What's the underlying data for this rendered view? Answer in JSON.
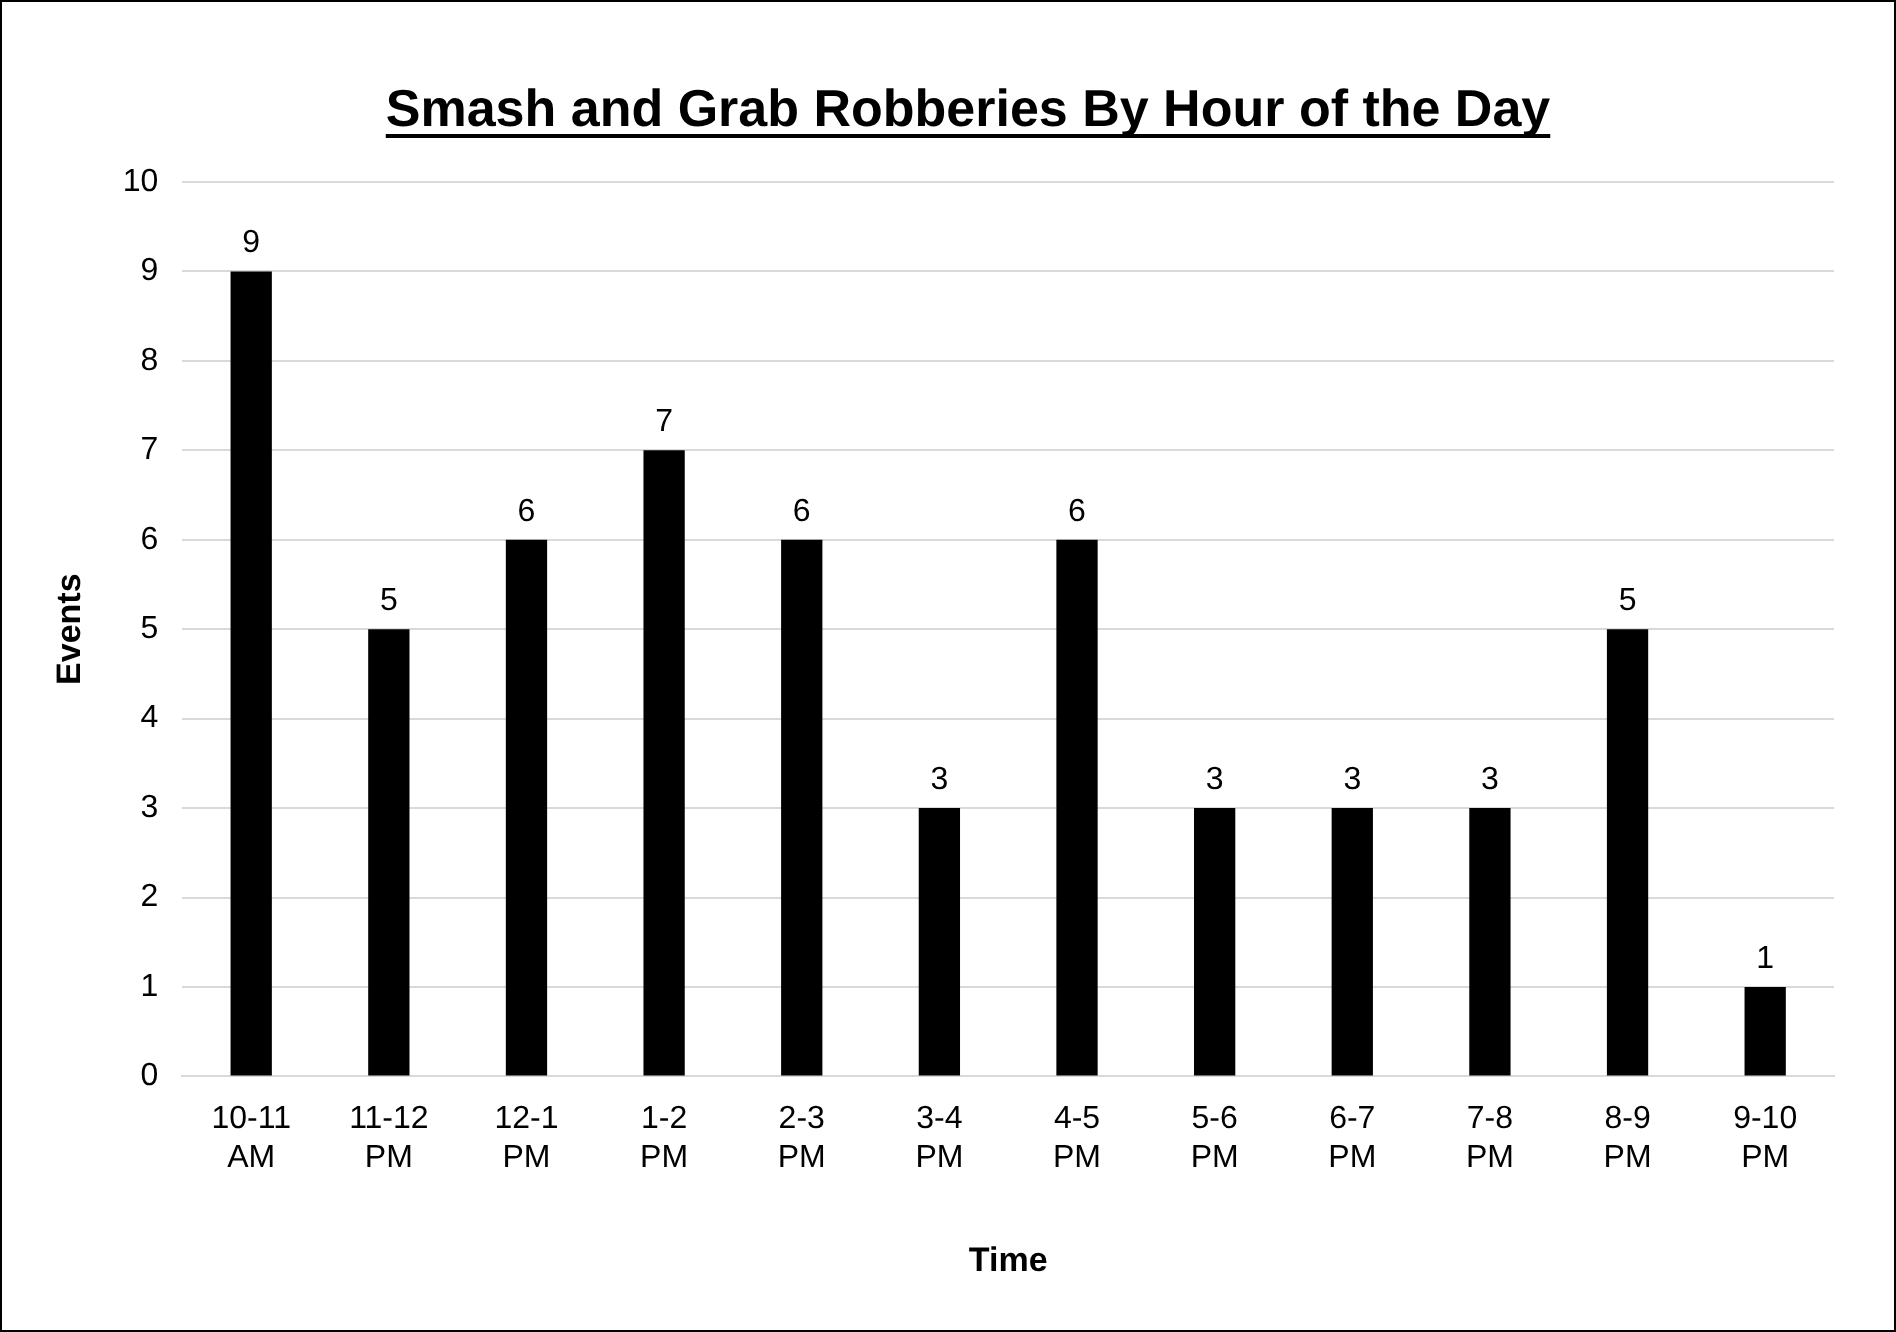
{
  "chart_data": {
    "type": "bar",
    "title": "Smash and Grab Robberies By Hour of the Day",
    "xlabel": "Time",
    "ylabel": "Events",
    "categories": [
      "10-11 AM",
      "11-12 PM",
      "12-1 PM",
      "1-2 PM",
      "2-3 PM",
      "3-4 PM",
      "4-5 PM",
      "5-6 PM",
      "6-7 PM",
      "7-8 PM",
      "8-9 PM",
      "9-10 PM"
    ],
    "values": [
      9,
      5,
      6,
      7,
      6,
      3,
      6,
      3,
      3,
      3,
      5,
      1
    ],
    "color": "#000000",
    "ylim": [
      0,
      10
    ],
    "yticks": [
      0,
      1,
      2,
      3,
      4,
      5,
      6,
      7,
      8,
      9,
      10
    ],
    "grid": "y",
    "data_labels": true,
    "legend": false
  }
}
